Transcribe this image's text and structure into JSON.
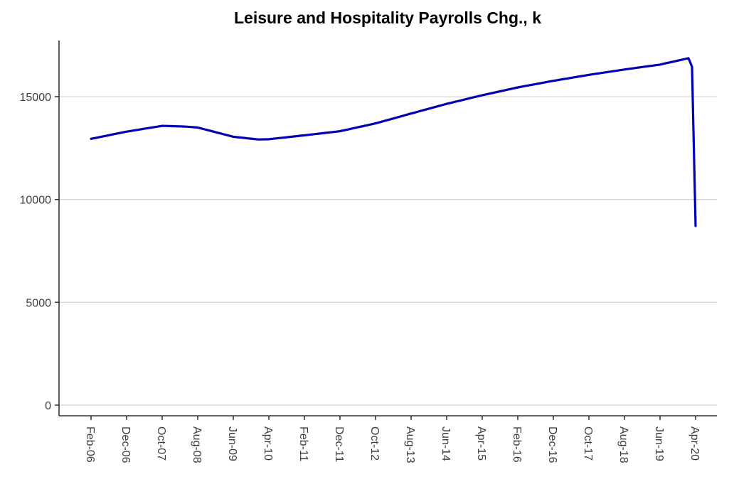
{
  "page": {
    "background": "#ffffff"
  },
  "chart_data": {
    "type": "line",
    "title": "Leisure and Hospitality Payrolls Chg., k",
    "xlabel": "",
    "ylabel": "",
    "legend": "none",
    "grid": "horizontal-only",
    "line_color": "#0000b4",
    "grid_color": "#d6d6d6",
    "axis_color": "#333333",
    "tick_label_color": "#3d3d3d",
    "ylim": [
      0,
      17750
    ],
    "y_ticks": [
      0,
      5000,
      10000,
      15000
    ],
    "y_tick_labels": [
      "0",
      "5000",
      "10000",
      "15000"
    ],
    "x_tick_labels": [
      "Feb-06",
      "Dec-06",
      "Oct-07",
      "Aug-08",
      "Jun-09",
      "Apr-10",
      "Feb-11",
      "Dec-11",
      "Oct-12",
      "Aug-13",
      "Jun-14",
      "Apr-15",
      "Feb-16",
      "Dec-16",
      "Oct-17",
      "Aug-18",
      "Jun-19",
      "Apr-20"
    ],
    "x_tick_indices": [
      0,
      10,
      20,
      30,
      40,
      50,
      60,
      70,
      80,
      90,
      100,
      110,
      120,
      130,
      140,
      150,
      160,
      170
    ],
    "x_start": "Feb-06",
    "x_end": "Apr-20",
    "values": [
      12950,
      12985,
      13020,
      13055,
      13090,
      13125,
      13160,
      13195,
      13230,
      13265,
      13300,
      13328,
      13356,
      13384,
      13412,
      13440,
      13468,
      13496,
      13524,
      13552,
      13580,
      13575,
      13570,
      13565,
      13560,
      13555,
      13550,
      13538,
      13525,
      13513,
      13500,
      13455,
      13410,
      13365,
      13320,
      13275,
      13230,
      13185,
      13140,
      13095,
      13050,
      13031,
      13013,
      12994,
      12976,
      12957,
      12939,
      12920,
      12923,
      12927,
      12930,
      12949,
      12968,
      12987,
      13006,
      13025,
      13044,
      13063,
      13082,
      13101,
      13120,
      13140,
      13160,
      13180,
      13200,
      13220,
      13240,
      13260,
      13280,
      13300,
      13320,
      13358,
      13396,
      13434,
      13472,
      13510,
      13548,
      13586,
      13624,
      13662,
      13700,
      13748,
      13796,
      13844,
      13892,
      13940,
      13988,
      14036,
      14084,
      14132,
      14180,
      14227,
      14274,
      14321,
      14368,
      14415,
      14462,
      14509,
      14556,
      14603,
      14650,
      14692,
      14734,
      14776,
      14818,
      14860,
      14902,
      14944,
      14986,
      15028,
      15070,
      15108,
      15146,
      15184,
      15222,
      15260,
      15298,
      15336,
      15374,
      15412,
      15450,
      15482,
      15514,
      15546,
      15578,
      15610,
      15642,
      15674,
      15706,
      15738,
      15770,
      15799,
      15828,
      15857,
      15886,
      15915,
      15944,
      15973,
      16002,
      16031,
      16060,
      16086,
      16112,
      16138,
      16164,
      16190,
      16216,
      16242,
      16268,
      16294,
      16320,
      16344,
      16368,
      16392,
      16416,
      16440,
      16464,
      16488,
      16512,
      16536,
      16560,
      16599,
      16638,
      16676,
      16715,
      16754,
      16792,
      16831,
      16870,
      16450,
      8710
    ]
  }
}
